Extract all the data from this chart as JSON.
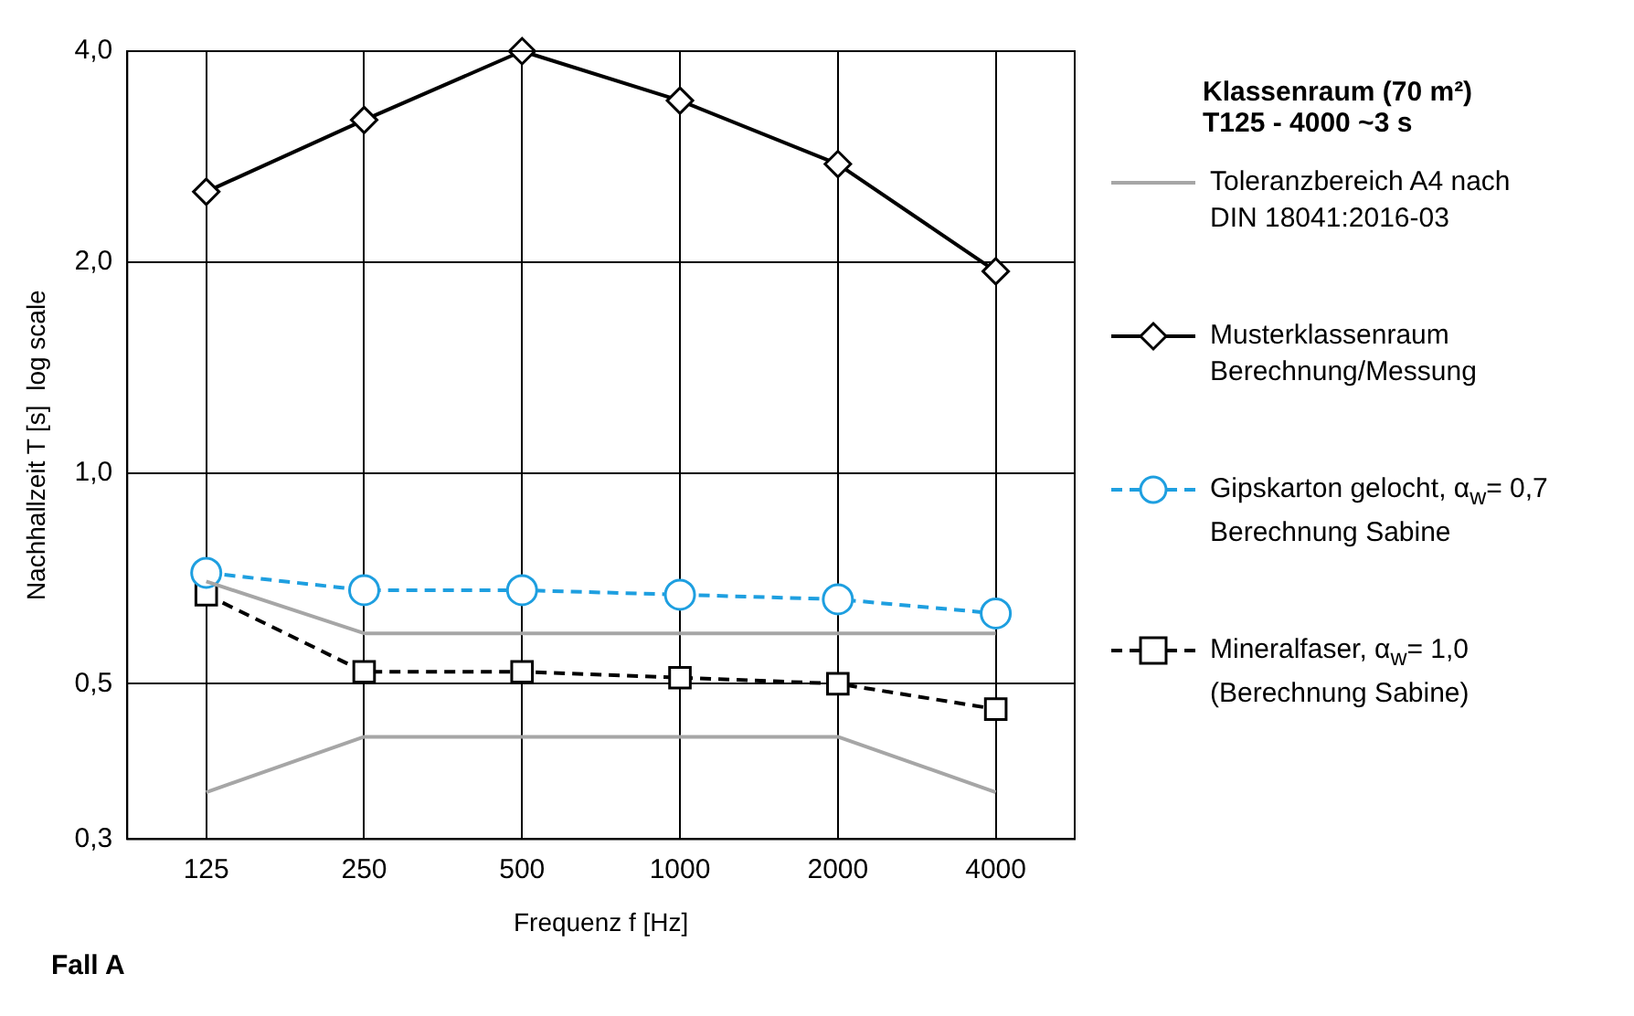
{
  "chart_data": {
    "type": "line",
    "xlabel": "Frequenz f [Hz]",
    "ylabel": "Nachhallzeit T [s]  log scale",
    "categories": [
      "125",
      "250",
      "500",
      "1000",
      "2000",
      "4000"
    ],
    "log": "y",
    "ylim": [
      0.3,
      4.0
    ],
    "yticks": [
      {
        "value": 0.3,
        "label": "0,3"
      },
      {
        "value": 0.5,
        "label": "0,5"
      },
      {
        "value": 1.0,
        "label": "1,0"
      },
      {
        "value": 2.0,
        "label": "2,0"
      },
      {
        "value": 4.0,
        "label": "4,0"
      }
    ],
    "grid": true,
    "legend": "right",
    "legend_title": "Klassenraum (70 m²)\nT125 - 4000 ~3 s",
    "annotations": [
      "Fall A"
    ],
    "series": [
      {
        "name": "Toleranzbereich A4 nach\nDIN 18041:2016-03",
        "color": "#a6a6a6",
        "marker": "none",
        "line_style": "solid",
        "values": [
          0.7,
          0.59,
          0.59,
          0.59,
          0.59,
          0.59
        ]
      },
      {
        "color": "#a6a6a6",
        "marker": "none",
        "line_style": "solid",
        "values": [
          0.35,
          0.42,
          0.42,
          0.42,
          0.42,
          0.35
        ]
      },
      {
        "name": "Musterklassenraum\nBerechnung/Messung",
        "color": "#000000",
        "marker": "diamond",
        "line_style": "solid",
        "values": [
          2.52,
          3.19,
          4.0,
          3.4,
          2.76,
          1.94
        ]
      },
      {
        "name": "Gipskarton gelocht, α$_{w}$= 0,7\nBerechnung Sabine",
        "color": "#1e9fe0",
        "marker": "circle",
        "line_style": "dashed",
        "values": [
          0.72,
          0.68,
          0.68,
          0.67,
          0.66,
          0.63
        ]
      },
      {
        "name": "Mineralfaser, α$_{w}$= 1,0\n(Berechnung Sabine)",
        "color": "#000000",
        "marker": "square",
        "line_style": "dashed",
        "values": [
          0.67,
          0.52,
          0.52,
          0.51,
          0.5,
          0.46
        ]
      }
    ]
  }
}
